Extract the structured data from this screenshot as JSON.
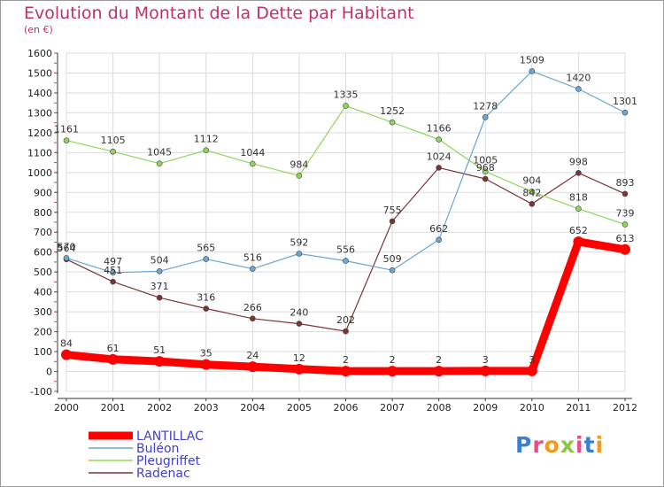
{
  "chart_data": {
    "type": "line",
    "title": "Evolution du Montant de la Dette par Habitant",
    "subtitle": "(en €)",
    "x": [
      "2000",
      "2001",
      "2002",
      "2003",
      "2004",
      "2005",
      "2006",
      "2007",
      "2008",
      "2009",
      "2010",
      "2011",
      "2012"
    ],
    "ylim": [
      -100,
      1600
    ],
    "yticks": [
      "-100",
      "0",
      "100",
      "200",
      "300",
      "400",
      "500",
      "600",
      "700",
      "800",
      "900",
      "1000",
      "1100",
      "1200",
      "1300",
      "1400",
      "1500",
      "1600"
    ],
    "grid": true,
    "legend_position": "bottom-left",
    "series": [
      {
        "name": "LANTILLAC",
        "color": "#ff0000",
        "values": [
          84,
          61,
          51,
          35,
          24,
          12,
          2,
          2,
          2,
          3,
          3,
          652,
          613
        ]
      },
      {
        "name": "Buléon",
        "color": "#6aa6d6",
        "values": [
          570,
          497,
          504,
          565,
          516,
          592,
          556,
          509,
          662,
          1278,
          1509,
          1420,
          1301
        ]
      },
      {
        "name": "Pleugriffet",
        "color": "#8fd65a",
        "values": [
          1161,
          1105,
          1045,
          1112,
          1044,
          984,
          1335,
          1252,
          1166,
          1005,
          904,
          818,
          739
        ]
      },
      {
        "name": "Radenac",
        "color": "#7a3434",
        "values": [
          564,
          451,
          371,
          316,
          266,
          240,
          202,
          755,
          1024,
          968,
          842,
          998,
          893
        ]
      }
    ]
  },
  "logo": {
    "text": "Proxiti",
    "colors": [
      "#3b7fd1",
      "#e84c8a",
      "#f39a1e",
      "#8cc63e",
      "#e84c8a",
      "#3b7fd1",
      "#f39a1e"
    ]
  }
}
